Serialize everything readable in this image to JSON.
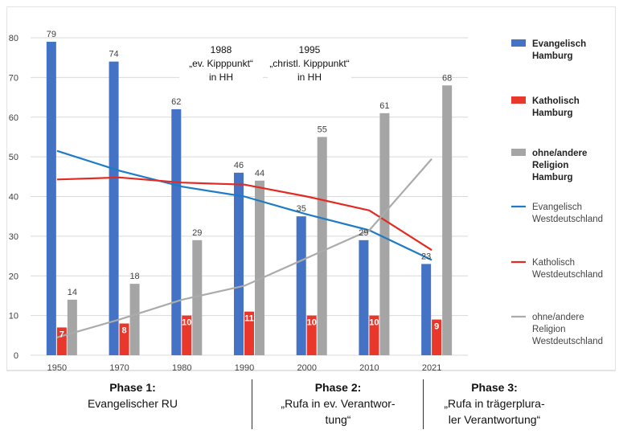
{
  "chart_data": {
    "type": "bar",
    "categories": [
      "1950",
      "1970",
      "1980",
      "1990",
      "2000",
      "2010",
      "2021"
    ],
    "ylim": [
      0,
      80
    ],
    "yticks": [
      0,
      10,
      20,
      30,
      40,
      50,
      60,
      70,
      80
    ],
    "grid": true,
    "legend_position": "right",
    "bar_series": [
      {
        "name": "Evangelisch Hamburg",
        "color": "#4472C4",
        "values": [
          79,
          74,
          62,
          46,
          35,
          29,
          23
        ],
        "labels": [
          "79",
          "74",
          "62",
          "46",
          "35",
          "29",
          "23"
        ]
      },
      {
        "name": "Katholisch Hamburg",
        "color": "#E8382C",
        "values": [
          7,
          8,
          10,
          11,
          10,
          10,
          9
        ],
        "labels": [
          "7",
          "8",
          "10",
          "11",
          "10",
          "10",
          "9"
        ]
      },
      {
        "name": "ohne/andere Religion Hamburg",
        "color": "#A5A5A5",
        "values": [
          14,
          18,
          29,
          44,
          55,
          61,
          68
        ],
        "labels": [
          "14",
          "18",
          "29",
          "44",
          "55",
          "61",
          "68"
        ]
      }
    ],
    "line_series": [
      {
        "name": "Evangelisch Westdeutschland",
        "color": "#1F7BC6",
        "values": [
          51.5,
          46.5,
          42.5,
          40,
          35.5,
          31.5,
          24
        ]
      },
      {
        "name": "Katholisch Westdeutschland",
        "color": "#E32B22",
        "values": [
          44.3,
          44.8,
          43.5,
          43,
          40,
          36.5,
          26.5
        ]
      },
      {
        "name": "ohne/andere Religion Westdeutschland",
        "color": "#ABABAB",
        "values": [
          4.5,
          9,
          14,
          17.5,
          24.5,
          31.5,
          49.5
        ]
      }
    ],
    "legend": [
      {
        "lines": [
          "Evangelisch",
          "Hamburg"
        ],
        "kind": "bar",
        "color": "#4472C4",
        "bold": true
      },
      {
        "lines": [
          "Katholisch",
          "Hamburg"
        ],
        "kind": "bar",
        "color": "#E8382C",
        "bold": true
      },
      {
        "lines": [
          "ohne/andere",
          "Religion",
          "Hamburg"
        ],
        "kind": "bar",
        "color": "#A5A5A5",
        "bold": true
      },
      {
        "lines": [
          "Evangelisch",
          "Westdeutschland"
        ],
        "kind": "line",
        "color": "#1F7BC6",
        "bold": false
      },
      {
        "lines": [
          "Katholisch",
          "Westdeutschland"
        ],
        "kind": "line",
        "color": "#E32B22",
        "bold": false
      },
      {
        "lines": [
          "ohne/andere",
          "Religion",
          "Westdeutschland"
        ],
        "kind": "line",
        "color": "#ABABAB",
        "bold": false
      }
    ],
    "annotations": [
      {
        "lines": [
          "1988",
          "„ev. Kipppunkt“",
          "in HH"
        ]
      },
      {
        "lines": [
          "1995",
          "„christl. Kipppunkt“",
          "in HH"
        ]
      }
    ]
  },
  "phases": [
    {
      "title": "Phase 1:",
      "lines": [
        "Evangelischer RU"
      ]
    },
    {
      "title": "Phase 2:",
      "lines": [
        "„Rufa in ev. Verantwor-",
        "tung“"
      ]
    },
    {
      "title": "Phase 3:",
      "lines": [
        "„Rufa in trägerplura-",
        "ler Verantwortung“"
      ]
    }
  ]
}
